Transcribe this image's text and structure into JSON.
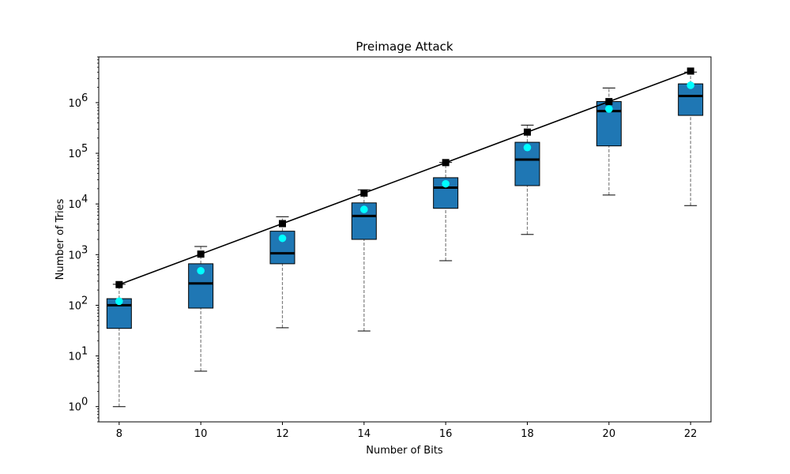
{
  "chart_data": {
    "type": "box",
    "title": "Preimage Attack",
    "xlabel": "Number of Bits",
    "ylabel": "Number of Tries",
    "yscale": "log",
    "ylim": [
      0.5,
      8000000
    ],
    "xlim": [
      7.5,
      22.5
    ],
    "x_ticks": [
      8,
      10,
      12,
      14,
      16,
      18,
      20,
      22
    ],
    "y_ticks": [
      {
        "value": 1,
        "base": "10",
        "exp": "0"
      },
      {
        "value": 10,
        "base": "10",
        "exp": "1"
      },
      {
        "value": 100,
        "base": "10",
        "exp": "2"
      },
      {
        "value": 1000,
        "base": "10",
        "exp": "3"
      },
      {
        "value": 10000,
        "base": "10",
        "exp": "4"
      },
      {
        "value": 100000,
        "base": "10",
        "exp": "5"
      },
      {
        "value": 1000000,
        "base": "10",
        "exp": "6"
      }
    ],
    "grid": false,
    "legend": "none",
    "boxes": [
      {
        "x": 8,
        "whisker_low": 1,
        "q1": 35,
        "median": 100,
        "q3": 135,
        "whisker_high": 260,
        "mean": 120
      },
      {
        "x": 10,
        "whisker_low": 5,
        "q1": 88,
        "median": 270,
        "q3": 660,
        "whisker_high": 1450,
        "mean": 480
      },
      {
        "x": 12,
        "whisker_low": 36,
        "q1": 660,
        "median": 1060,
        "q3": 2900,
        "whisker_high": 5600,
        "mean": 2100
      },
      {
        "x": 14,
        "whisker_low": 31,
        "q1": 2000,
        "median": 5800,
        "q3": 10500,
        "whisker_high": 19000,
        "mean": 7800
      },
      {
        "x": 16,
        "whisker_low": 760,
        "q1": 8200,
        "median": 21000,
        "q3": 33000,
        "whisker_high": 66000,
        "mean": 25000
      },
      {
        "x": 18,
        "whisker_low": 2500,
        "q1": 23000,
        "median": 75000,
        "q3": 165000,
        "whisker_high": 360000,
        "mean": 130000
      },
      {
        "x": 20,
        "whisker_low": 15000,
        "q1": 140000,
        "median": 680000,
        "q3": 1050000,
        "whisker_high": 1950000,
        "mean": 750000
      },
      {
        "x": 22,
        "whisker_low": 9300,
        "q1": 560000,
        "median": 1350000,
        "q3": 2350000,
        "whisker_high": 4000000,
        "mean": 2200000
      }
    ],
    "expected_line": {
      "x": [
        8,
        10,
        12,
        14,
        16,
        18,
        20,
        22
      ],
      "y": [
        256,
        1024,
        4096,
        16384,
        65536,
        262144,
        1048576,
        4194304
      ]
    },
    "colors": {
      "box_fill": "#1f77b4",
      "median": "#000000",
      "mean_marker": "#00ffff",
      "whisker": "#7f7f7f",
      "line": "#000000"
    }
  }
}
